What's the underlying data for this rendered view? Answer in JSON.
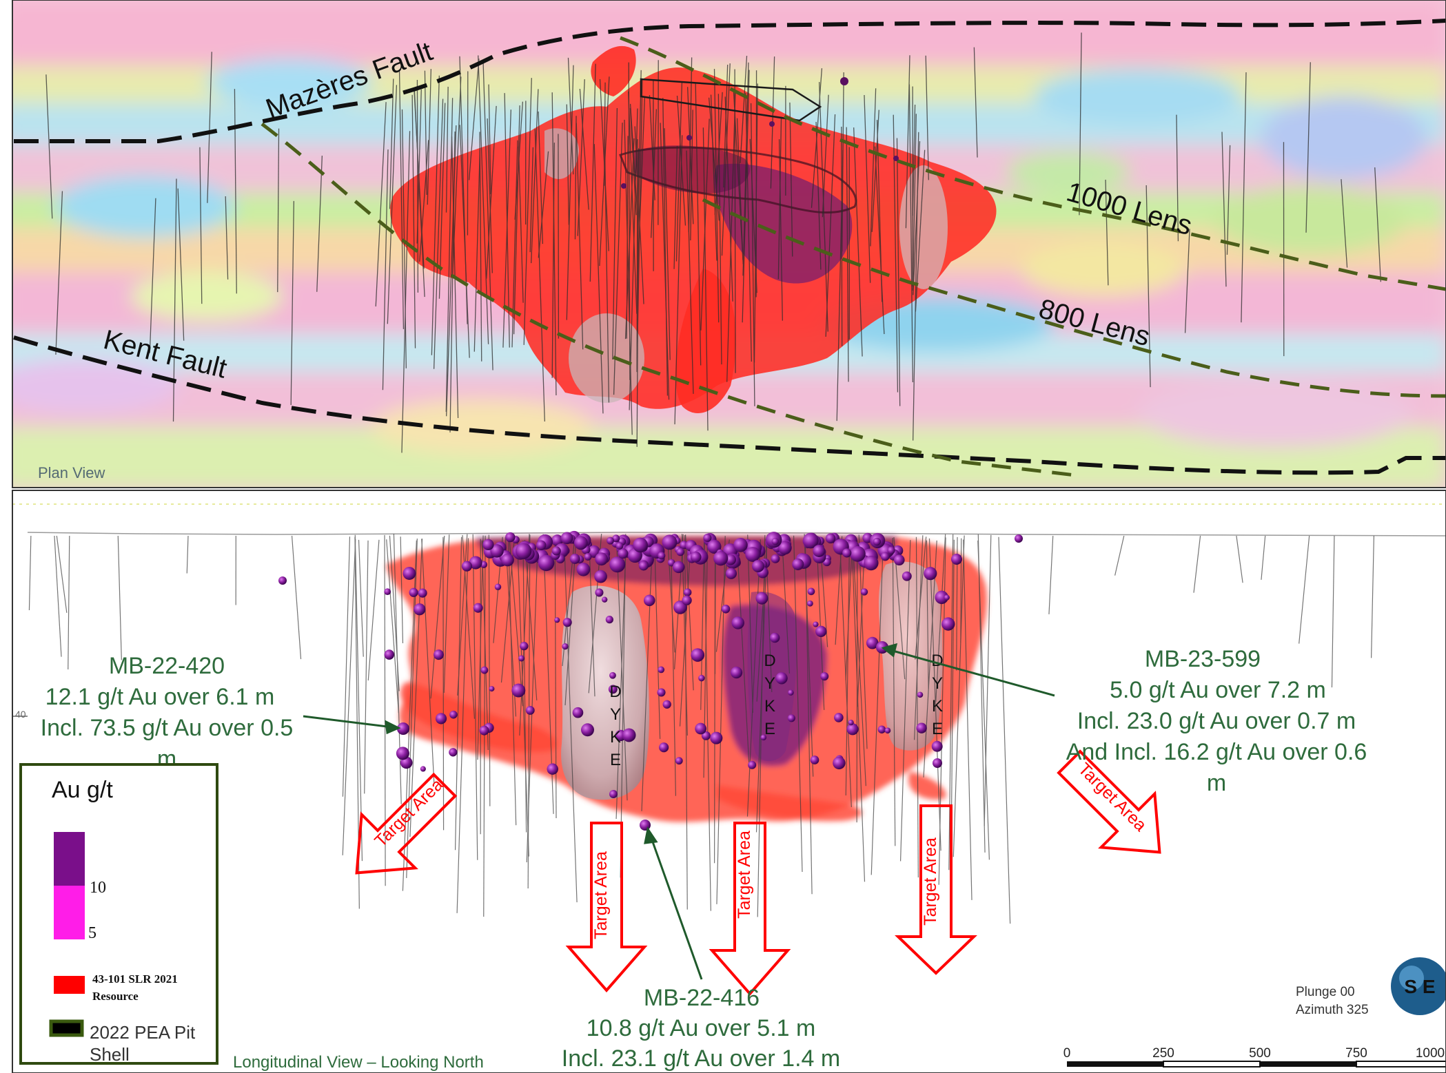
{
  "plan": {
    "view_label": "Plan View",
    "labels": {
      "mazeres_fault": "Mazères Fault",
      "kent_fault": "Kent Fault",
      "lens_1000": "1000 Lens",
      "lens_800": "800 Lens"
    }
  },
  "section": {
    "view_label": "Longitudinal View – Looking North",
    "dyke_letters": [
      "D",
      "Y",
      "K",
      "E"
    ],
    "target_label": "Target Area",
    "callouts": {
      "mb22_420": {
        "lines": [
          "MB-22-420",
          "12.1 g/t Au over 6.1 m",
          "Incl. 73.5 g/t Au over 0.5",
          "m"
        ]
      },
      "mb23_599": {
        "lines": [
          "MB-23-599",
          "5.0 g/t Au over 7.2 m",
          "Incl. 23.0 g/t Au over 0.7 m",
          "And Incl. 16.2 g/t Au over 0.6",
          "m"
        ]
      },
      "mb22_416": {
        "lines": [
          "MB-22-416",
          "10.8 g/t Au over 5.1 m",
          "Incl. 23.1 g/t Au over 1.4 m"
        ]
      }
    },
    "orientation": {
      "plunge": "Plunge 00",
      "azimuth": "Azimuth 325"
    },
    "scale_labels": [
      "0",
      "250",
      "500",
      "750",
      "1000"
    ],
    "axis_tick": "40",
    "logo_text": "S E"
  },
  "legend": {
    "title": "Au g/t",
    "grade_labels": [
      "10",
      "5"
    ],
    "grade_colors": [
      "#7a0f8a",
      "#ff1de8"
    ],
    "resource_label_1": "43-101 SLR 2021",
    "resource_label_2": "Resource",
    "resource_color": "#ff0000",
    "pit_label_1": "2022 PEA Pit",
    "pit_label_2": "Shell",
    "pit_color": "#000000"
  },
  "colors": {
    "fault_line": "#111111",
    "lens_line": "#4b5e1a",
    "callout_text": "#2e6b3c",
    "target_arrow": "#ff0000",
    "frame": "#2f4a10"
  }
}
